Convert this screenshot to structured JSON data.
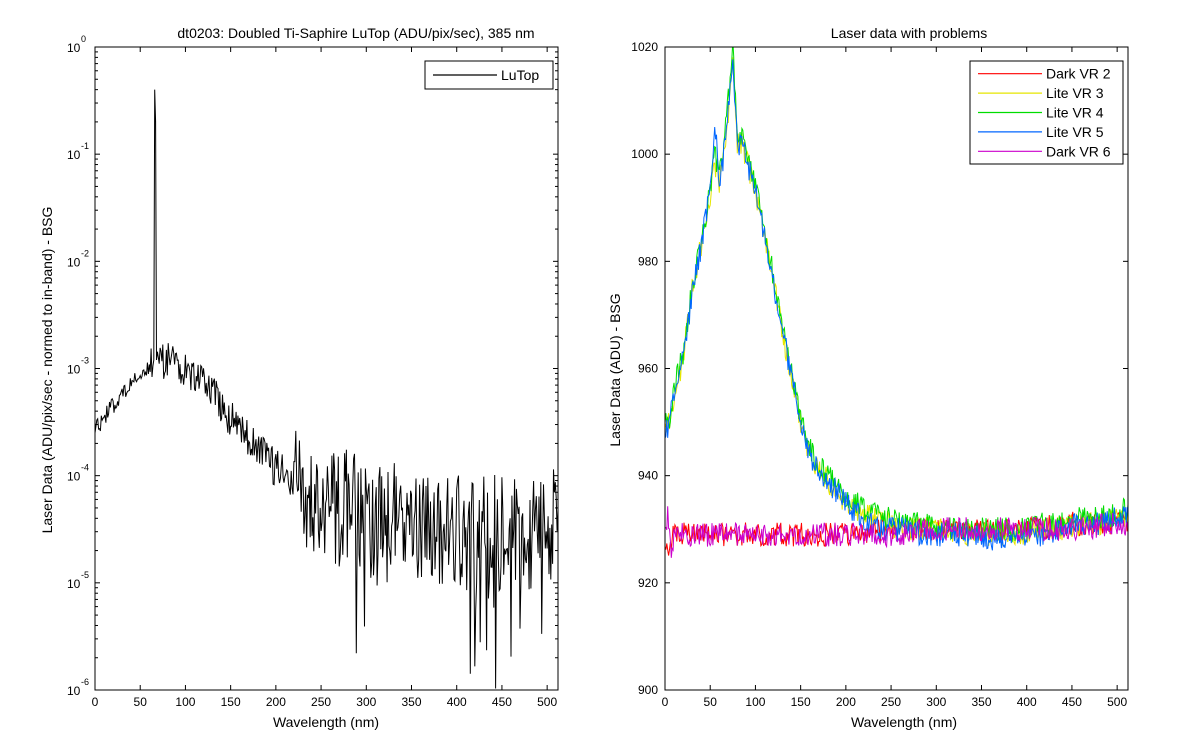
{
  "figure": {
    "background": "#ffffff"
  },
  "chart_data": [
    {
      "type": "line",
      "title": "dt0203: Doubled Ti-Saphire LuTop (ADU/pix/sec), 385 nm",
      "xlabel": "Wavelength (nm)",
      "ylabel": "Laser Data (ADU/pix/sec - normed to in-band) - BSG",
      "xlim": [
        0,
        512
      ],
      "ylim": [
        1e-06,
        1
      ],
      "yscale": "log",
      "xticks": [
        "0",
        "50",
        "100",
        "150",
        "200",
        "250",
        "300",
        "350",
        "400",
        "450",
        "500"
      ],
      "yticks": [
        {
          "base": "10",
          "exp": "0"
        },
        {
          "base": "10",
          "exp": "-1"
        },
        {
          "base": "10",
          "exp": "-2"
        },
        {
          "base": "10",
          "exp": "-3"
        },
        {
          "base": "10",
          "exp": "-4"
        },
        {
          "base": "10",
          "exp": "-5"
        },
        {
          "base": "10",
          "exp": "-6"
        }
      ],
      "grid": false,
      "legend_position": "top-right",
      "series": [
        {
          "name": "LuTop",
          "color": "#000000",
          "x": [
            0,
            5,
            10,
            20,
            30,
            40,
            50,
            55,
            60,
            63,
            65,
            66,
            67,
            68,
            70,
            75,
            80,
            90,
            100,
            110,
            120,
            130,
            140,
            150,
            160,
            170,
            180,
            190,
            200,
            210,
            220,
            230,
            240,
            250,
            260,
            270,
            280,
            290,
            300,
            310,
            320,
            330,
            340,
            350,
            360,
            370,
            380,
            390,
            400,
            410,
            420,
            430,
            440,
            450,
            460,
            470,
            480,
            490,
            500,
            505,
            510,
            512
          ],
          "y": [
            0.0003,
            0.0003,
            0.00035,
            0.00045,
            0.00058,
            0.00072,
            0.00088,
            0.00095,
            0.001,
            0.0011,
            0.0012,
            0.4,
            0.2,
            0.0012,
            0.0012,
            0.0012,
            0.00115,
            0.0011,
            0.001,
            0.0009,
            0.00078,
            0.0006,
            0.00045,
            0.00035,
            0.00028,
            0.00022,
            0.00017,
            0.00014,
            0.00012,
            0.0001,
            8e-05,
            7e-05,
            6.5e-05,
            6e-05,
            5.5e-05,
            5e-05,
            5e-05,
            4.5e-05,
            4.5e-05,
            4e-05,
            4e-05,
            4e-05,
            3.5e-05,
            3.5e-05,
            3e-05,
            3.5e-05,
            3.5e-05,
            3e-05,
            3e-05,
            3e-05,
            3.5e-05,
            3e-05,
            3e-05,
            3e-05,
            3.5e-05,
            3.5e-05,
            3e-05,
            3e-05,
            3.5e-05,
            3.5e-05,
            3e-05,
            4e-05
          ]
        }
      ]
    },
    {
      "type": "line",
      "title": "Laser data with problems",
      "xlabel": "Wavelength (nm)",
      "ylabel": "Laser Data (ADU) - BSG",
      "xlim": [
        0,
        512
      ],
      "ylim": [
        900,
        1020
      ],
      "yscale": "linear",
      "xticks": [
        "0",
        "50",
        "100",
        "150",
        "200",
        "250",
        "300",
        "350",
        "400",
        "450",
        "500"
      ],
      "yticks": [
        "900",
        "920",
        "940",
        "960",
        "980",
        "1000",
        "1020"
      ],
      "grid": false,
      "legend_position": "top-right",
      "series": [
        {
          "name": "Dark VR 2",
          "color": "#ff0000",
          "x": [
            0,
            3,
            6,
            10,
            20,
            50,
            100,
            150,
            200,
            250,
            300,
            350,
            400,
            450,
            500,
            512
          ],
          "y": [
            929,
            924,
            928,
            929,
            929,
            929,
            929,
            929,
            929,
            930,
            930,
            930,
            930,
            931,
            931,
            931
          ]
        },
        {
          "name": "Lite VR 3",
          "color": "#e6e600",
          "x": [
            0,
            5,
            10,
            20,
            30,
            40,
            50,
            55,
            60,
            65,
            70,
            75,
            80,
            85,
            90,
            95,
            100,
            110,
            120,
            130,
            140,
            150,
            160,
            170,
            180,
            190,
            200,
            210,
            220,
            230,
            240,
            250,
            260,
            270,
            280,
            290,
            300,
            320,
            340,
            360,
            380,
            400,
            420,
            440,
            460,
            480,
            500,
            512
          ],
          "y": [
            950,
            950,
            955,
            962,
            975,
            983,
            992,
            998,
            995,
            1000,
            1008,
            1016,
            1002,
            1002,
            999,
            996,
            993,
            985,
            976,
            967,
            958,
            950,
            944,
            941,
            939,
            937,
            935,
            934,
            933,
            932,
            931,
            931,
            930,
            930,
            930,
            930,
            930,
            929,
            929,
            929,
            929,
            929,
            930,
            930,
            931,
            931,
            932,
            933
          ]
        },
        {
          "name": "Lite VR 4",
          "color": "#00dd00",
          "x": [
            0,
            5,
            10,
            20,
            30,
            40,
            50,
            55,
            60,
            65,
            70,
            75,
            80,
            85,
            90,
            95,
            100,
            110,
            120,
            130,
            140,
            150,
            160,
            170,
            180,
            190,
            200,
            210,
            220,
            230,
            240,
            250,
            260,
            270,
            280,
            290,
            300,
            320,
            340,
            360,
            380,
            400,
            420,
            440,
            460,
            480,
            500,
            512
          ],
          "y": [
            951,
            951,
            956,
            963,
            975,
            984,
            993,
            1000,
            996,
            1001,
            1010,
            1020,
            1003,
            1003,
            1000,
            997,
            994,
            986,
            977,
            968,
            959,
            951,
            945,
            942,
            940,
            938,
            936,
            935,
            934,
            933,
            932,
            932,
            931,
            931,
            931,
            931,
            930,
            930,
            930,
            930,
            930,
            930,
            931,
            931,
            932,
            932,
            933,
            934
          ]
        },
        {
          "name": "Lite VR 5",
          "color": "#0066ff",
          "x": [
            0,
            5,
            10,
            20,
            30,
            40,
            50,
            55,
            60,
            65,
            70,
            75,
            80,
            85,
            90,
            95,
            100,
            110,
            120,
            130,
            140,
            150,
            160,
            170,
            180,
            190,
            200,
            210,
            220,
            230,
            240,
            250,
            260,
            270,
            280,
            290,
            300,
            320,
            340,
            360,
            380,
            400,
            420,
            440,
            460,
            480,
            500,
            512
          ],
          "y": [
            947,
            950,
            955,
            962,
            974,
            983,
            993,
            1006,
            995,
            1000,
            1009,
            1018,
            1002,
            1002,
            999,
            996,
            993,
            985,
            976,
            967,
            958,
            950,
            944,
            941,
            939,
            937,
            935,
            933,
            932,
            931,
            930,
            930,
            930,
            930,
            929,
            929,
            929,
            929,
            929,
            928,
            928,
            929,
            929,
            930,
            931,
            931,
            932,
            933
          ]
        },
        {
          "name": "Dark VR 6",
          "color": "#cc00cc",
          "x": [
            0,
            3,
            6,
            10,
            20,
            50,
            100,
            150,
            200,
            250,
            300,
            350,
            400,
            450,
            500,
            512
          ],
          "y": [
            930,
            933,
            926,
            929,
            929,
            929,
            929,
            929,
            929,
            929,
            930,
            930,
            930,
            930,
            931,
            931
          ]
        }
      ]
    }
  ]
}
